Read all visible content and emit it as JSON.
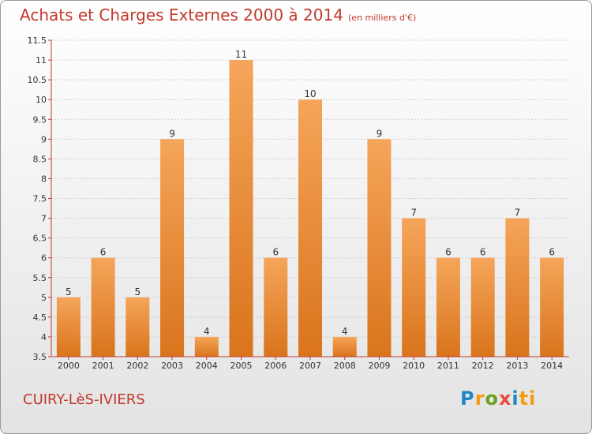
{
  "title": "Achats et Charges Externes 2000 à 2014",
  "unit": "(en milliers d'€)",
  "town": "CUIRY-LèS-IVIERS",
  "logo": [
    "P",
    "r",
    "o",
    "x",
    "i",
    "ti"
  ],
  "chart_data": {
    "type": "bar",
    "categories": [
      "2000",
      "2001",
      "2002",
      "2003",
      "2004",
      "2005",
      "2006",
      "2007",
      "2008",
      "2009",
      "2010",
      "2011",
      "2012",
      "2013",
      "2014"
    ],
    "values": [
      5,
      6,
      5,
      9,
      4,
      11,
      6,
      10,
      4,
      9,
      7,
      6,
      6,
      7,
      6
    ],
    "ylim": [
      3.5,
      11.5
    ],
    "yticks": [
      "3.5",
      "4",
      "4.5",
      "5",
      "5.5",
      "6",
      "6.5",
      "7",
      "7.5",
      "8",
      "8.5",
      "9",
      "9.5",
      "10",
      "10.5",
      "11",
      "11.5"
    ],
    "grid": true,
    "colors": {
      "bar_top": "#f5a55a",
      "bar_bottom": "#d9741c",
      "axis": "#c0392b",
      "grid": "#d0d0d0"
    }
  }
}
